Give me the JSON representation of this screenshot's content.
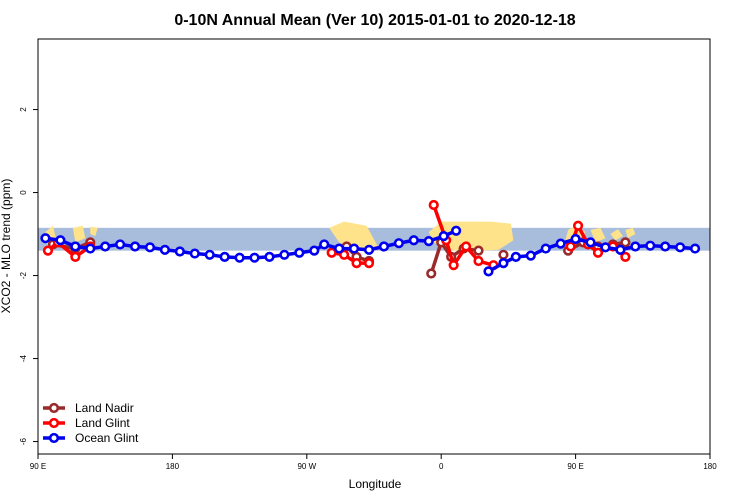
{
  "chart_data": {
    "type": "line",
    "title": "0-10N Annual Mean (Ver 10)   2015-01-01 to 2020-12-18",
    "xlabel": "Longitude",
    "ylabel": "XCO2 - MLO trend (ppm)",
    "xlim": [
      -90,
      180
    ],
    "ylim": [
      -6.3,
      3.7
    ],
    "x_ticks": [
      {
        "value": -90,
        "label": "90 E"
      },
      {
        "value": -36,
        "label": "180"
      },
      {
        "value": 18,
        "label": "90 W"
      },
      {
        "value": 72,
        "label": "0"
      },
      {
        "value": 126,
        "label": "90 E"
      },
      {
        "value": 180,
        "label": "180"
      }
    ],
    "y_ticks": [
      -6,
      -4,
      -2,
      0,
      2
    ],
    "legend_position": "bottom-left",
    "series": [
      {
        "name": "Land Nadir",
        "color": "#9b2a2a",
        "segments": [
          [
            [
              -84,
              -1.25
            ],
            [
              -75,
              -1.35
            ],
            [
              -69,
              -1.2
            ]
          ],
          [
            [
              34,
              -1.3
            ],
            [
              38,
              -1.55
            ],
            [
              43,
              -1.65
            ]
          ],
          [
            [
              68,
              -1.95
            ],
            [
              72,
              -1.2
            ],
            [
              76,
              -1.55
            ],
            [
              81,
              -1.35
            ],
            [
              87,
              -1.4
            ]
          ],
          [
            [
              97,
              -1.5
            ]
          ],
          [
            [
              123,
              -1.4
            ],
            [
              129,
              -1.2
            ],
            [
              135,
              -1.3
            ],
            [
              141,
              -1.25
            ],
            [
              146,
              -1.2
            ]
          ]
        ]
      },
      {
        "name": "Land Glint",
        "color": "#ff0000",
        "segments": [
          [
            [
              -86,
              -1.4
            ],
            [
              -82,
              -1.2
            ],
            [
              -75,
              -1.55
            ],
            [
              -69,
              -1.3
            ]
          ],
          [
            [
              28,
              -1.45
            ],
            [
              33,
              -1.5
            ],
            [
              38,
              -1.7
            ],
            [
              43,
              -1.7
            ]
          ],
          [
            [
              69,
              -0.3
            ],
            [
              74,
              -1.15
            ],
            [
              77,
              -1.75
            ],
            [
              82,
              -1.3
            ],
            [
              87,
              -1.65
            ],
            [
              93,
              -1.75
            ]
          ],
          [
            [
              124,
              -1.3
            ],
            [
              127,
              -0.8
            ],
            [
              131,
              -1.25
            ],
            [
              135,
              -1.45
            ],
            [
              141,
              -1.3
            ],
            [
              146,
              -1.55
            ]
          ]
        ]
      },
      {
        "name": "Ocean Glint",
        "color": "#0000ee",
        "segments": [
          [
            [
              -87,
              -1.1
            ],
            [
              -81,
              -1.15
            ],
            [
              -75,
              -1.3
            ],
            [
              -69,
              -1.35
            ],
            [
              -63,
              -1.3
            ],
            [
              -57,
              -1.25
            ],
            [
              -51,
              -1.3
            ],
            [
              -45,
              -1.32
            ],
            [
              -39,
              -1.38
            ],
            [
              -33,
              -1.42
            ],
            [
              -27,
              -1.47
            ],
            [
              -21,
              -1.5
            ],
            [
              -15,
              -1.55
            ],
            [
              -9,
              -1.57
            ],
            [
              -3,
              -1.57
            ],
            [
              3,
              -1.55
            ],
            [
              9,
              -1.5
            ],
            [
              15,
              -1.45
            ],
            [
              21,
              -1.4
            ],
            [
              25,
              -1.25
            ],
            [
              31,
              -1.35
            ],
            [
              37,
              -1.35
            ],
            [
              43,
              -1.38
            ],
            [
              49,
              -1.3
            ],
            [
              55,
              -1.22
            ],
            [
              61,
              -1.15
            ],
            [
              67,
              -1.17
            ],
            [
              73,
              -1.05
            ],
            [
              78,
              -0.92
            ]
          ],
          [
            [
              91,
              -1.9
            ],
            [
              97,
              -1.7
            ],
            [
              102,
              -1.55
            ],
            [
              108,
              -1.52
            ],
            [
              114,
              -1.35
            ],
            [
              120,
              -1.23
            ],
            [
              126,
              -1.12
            ],
            [
              132,
              -1.2
            ],
            [
              138,
              -1.32
            ],
            [
              144,
              -1.38
            ],
            [
              150,
              -1.3
            ],
            [
              156,
              -1.28
            ],
            [
              162,
              -1.3
            ],
            [
              168,
              -1.32
            ],
            [
              174,
              -1.35
            ]
          ]
        ]
      }
    ],
    "land_color": "#ffe38a",
    "band_color": "#a8bcdc",
    "band_range": [
      -1.4,
      -0.85
    ]
  }
}
